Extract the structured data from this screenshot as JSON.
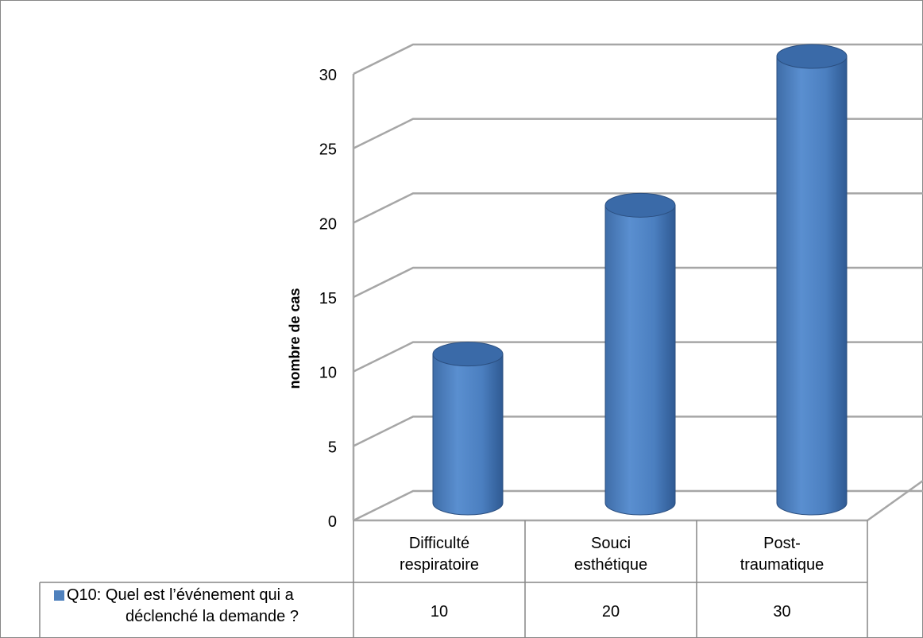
{
  "chart_data": {
    "type": "bar",
    "title": "",
    "xlabel": "",
    "ylabel": "nombre de cas",
    "ylim": [
      0,
      30
    ],
    "yticks": [
      0,
      5,
      10,
      15,
      20,
      25,
      30
    ],
    "categories": [
      [
        "Difficulté",
        "respiratoire"
      ],
      [
        "Souci",
        "esthétique"
      ],
      [
        "Post-",
        "traumatique"
      ]
    ],
    "series": [
      {
        "name": [
          "Q10: Quel est l’événement qui a",
          "déclenché la demande ?"
        ],
        "values": [
          10,
          20,
          30
        ]
      }
    ],
    "legend": "data-table-left",
    "grid": true,
    "bar_shape": "cylinder",
    "colors": {
      "bar_body": "#4f81bd",
      "bar_top": "#3a6aa8",
      "bar_shadow": "#2b4f80",
      "gridline": "#a6a6a6",
      "border": "#868686"
    }
  }
}
